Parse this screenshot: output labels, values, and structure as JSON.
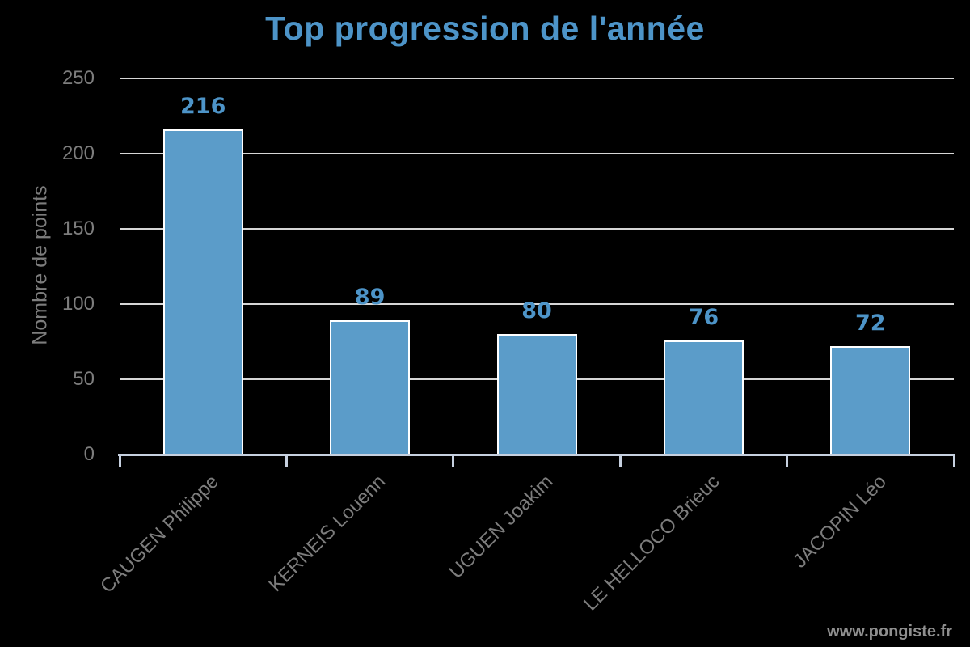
{
  "title": "Top progression de l'année",
  "watermark": "www.pongiste.fr",
  "colors": {
    "background": "#000000",
    "title_accent": "#4d94c8",
    "bar_fill": "#5b9cc9",
    "bar_border": "#ffffff",
    "tick_label_gray": "#7d7d7d",
    "gridline": "#d6d6d6",
    "axis_line": "#c6d0df",
    "watermark_gray": "#8f8f8f"
  },
  "chart_data": {
    "type": "bar",
    "title": "Top progression de l'année",
    "categories": [
      "CAUGEN Philippe",
      "KERNEIS Louenn",
      "UGUEN Joakim",
      "LE HELLOCO Brieuc",
      "JACOPIN Léo"
    ],
    "values": [
      216,
      89,
      80,
      76,
      72
    ],
    "xlabel": "",
    "ylabel": "Nombre de points",
    "ylim": [
      0,
      250
    ],
    "yticks": [
      0,
      50,
      100,
      150,
      200,
      250
    ],
    "grid": "horizontal",
    "legend": "none",
    "value_labels_shown": true,
    "x_tick_rotation": 45
  }
}
